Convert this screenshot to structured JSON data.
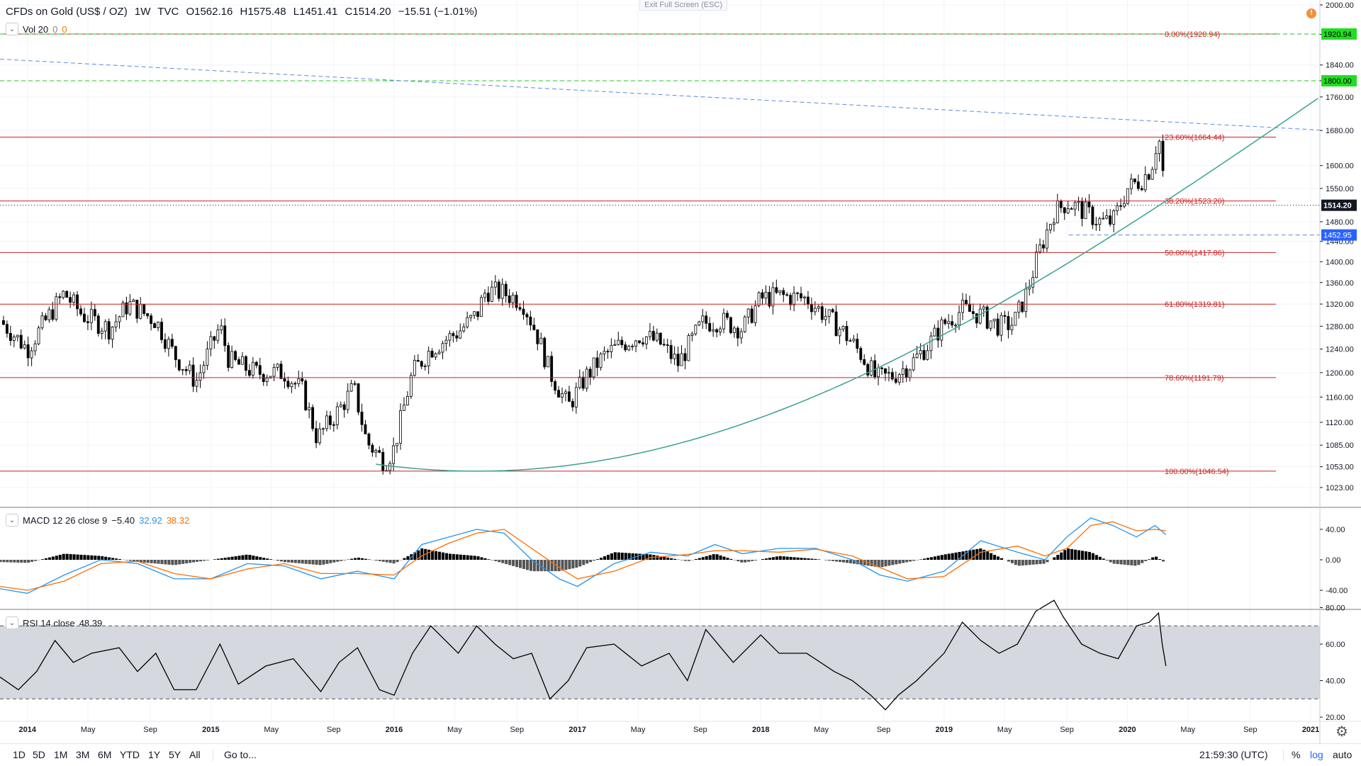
{
  "header": {
    "symbol": "CFDs on Gold (US$ / OZ)",
    "interval": "1W",
    "source": "TVC",
    "ohlc": {
      "o_label": "O",
      "o": "1562.16",
      "h_label": "H",
      "h": "1575.48",
      "l_label": "L",
      "l": "1451.41",
      "c_label": "C",
      "c": "1514.20",
      "change": "−15.51 (−1.01%)"
    },
    "exit_fullscreen": "Exit Full Screen (ESC)"
  },
  "indicators": {
    "vol": {
      "label": "Vol 20",
      "v1": "0",
      "v2": "0"
    },
    "macd": {
      "label": "MACD 12 26 close 9",
      "hist": "−5.40",
      "macd": "32.92",
      "signal": "38.32"
    },
    "rsi": {
      "label": "RSI 14 close",
      "value": "48.39"
    }
  },
  "bottom_bar": {
    "ranges": [
      "1D",
      "5D",
      "1M",
      "3M",
      "6M",
      "YTD",
      "1Y",
      "5Y",
      "All"
    ],
    "goto": "Go to...",
    "clock": "21:59:30 (UTC)",
    "pct": "%",
    "log": "log",
    "auto": "auto"
  },
  "colors": {
    "up": "#ffffff",
    "down": "#000000",
    "candle_border": "#000000",
    "fib": "#cc2222",
    "trend_dashed": "#5b8ddb",
    "green_dashed": "#22cc22",
    "curve": "#3aa38f",
    "macd": "#2196f3",
    "signal": "#ff6d00",
    "rsi_line": "#000000",
    "rsi_band": "#d1d4dc",
    "price_label_bg": "#131722",
    "support_label_bg": "#2962ff",
    "green_label_bg": "#22dd22"
  },
  "chart_data": [
    {
      "type": "candlestick",
      "title": "CFDs on Gold (US$ / OZ)",
      "y_scale": "log",
      "ylim": [
        1000,
        2000
      ],
      "y_ticks": [
        1023.0,
        1053.0,
        1085.0,
        1120.0,
        1160.0,
        1200.0,
        1240.0,
        1280.0,
        1320.0,
        1360.0,
        1400.0,
        1440.0,
        1480.0,
        1550.0,
        1600.0,
        1680.0,
        1760.0,
        1800.0,
        1840.0,
        1920.0,
        2000.0
      ],
      "x_ticks": [
        "2014",
        "May",
        "Sep",
        "2015",
        "May",
        "Sep",
        "2016",
        "May",
        "Sep",
        "2017",
        "May",
        "Sep",
        "2018",
        "May",
        "Sep",
        "2019",
        "May",
        "Sep",
        "2020",
        "May",
        "Sep",
        "2021"
      ],
      "x_tick_years": [
        2014.0,
        2014.33,
        2014.67,
        2015.0,
        2015.33,
        2015.67,
        2016.0,
        2016.33,
        2016.67,
        2017.0,
        2017.33,
        2017.67,
        2018.0,
        2018.33,
        2018.67,
        2019.0,
        2019.33,
        2019.67,
        2020.0,
        2020.33,
        2020.67,
        2021.0
      ],
      "x_range_years": [
        2013.85,
        2021.05
      ],
      "price_path": [
        [
          2013.85,
          1290
        ],
        [
          2014.0,
          1240
        ],
        [
          2014.1,
          1290
        ],
        [
          2014.2,
          1340
        ],
        [
          2014.3,
          1300
        ],
        [
          2014.45,
          1275
        ],
        [
          2014.55,
          1320
        ],
        [
          2014.7,
          1290
        ],
        [
          2014.8,
          1230
        ],
        [
          2014.92,
          1185
        ],
        [
          2015.05,
          1280
        ],
        [
          2015.1,
          1220
        ],
        [
          2015.25,
          1200
        ],
        [
          2015.4,
          1200
        ],
        [
          2015.5,
          1170
        ],
        [
          2015.58,
          1095
        ],
        [
          2015.7,
          1140
        ],
        [
          2015.78,
          1175
        ],
        [
          2015.85,
          1090
        ],
        [
          2015.95,
          1060
        ],
        [
          2016.0,
          1080
        ],
        [
          2016.1,
          1200
        ],
        [
          2016.2,
          1240
        ],
        [
          2016.35,
          1270
        ],
        [
          2016.45,
          1300
        ],
        [
          2016.5,
          1345
        ],
        [
          2016.6,
          1340
        ],
        [
          2016.7,
          1325
        ],
        [
          2016.78,
          1265
        ],
        [
          2016.85,
          1200
        ],
        [
          2016.95,
          1145
        ],
        [
          2017.05,
          1195
        ],
        [
          2017.15,
          1230
        ],
        [
          2017.25,
          1250
        ],
        [
          2017.35,
          1265
        ],
        [
          2017.45,
          1250
        ],
        [
          2017.55,
          1215
        ],
        [
          2017.68,
          1285
        ],
        [
          2017.78,
          1290
        ],
        [
          2017.9,
          1275
        ],
        [
          2018.0,
          1330
        ],
        [
          2018.1,
          1335
        ],
        [
          2018.25,
          1330
        ],
        [
          2018.35,
          1300
        ],
        [
          2018.45,
          1270
        ],
        [
          2018.55,
          1230
        ],
        [
          2018.63,
          1190
        ],
        [
          2018.72,
          1195
        ],
        [
          2018.82,
          1215
        ],
        [
          2018.92,
          1250
        ],
        [
          2019.0,
          1285
        ],
        [
          2019.1,
          1310
        ],
        [
          2019.2,
          1300
        ],
        [
          2019.3,
          1280
        ],
        [
          2019.38,
          1285
        ],
        [
          2019.45,
          1340
        ],
        [
          2019.52,
          1420
        ],
        [
          2019.6,
          1500
        ],
        [
          2019.67,
          1520
        ],
        [
          2019.75,
          1505
        ],
        [
          2019.85,
          1480
        ],
        [
          2019.92,
          1480
        ],
        [
          2020.0,
          1550
        ],
        [
          2020.08,
          1570
        ],
        [
          2020.13,
          1595
        ],
        [
          2020.17,
          1670
        ],
        [
          2020.19,
          1600
        ],
        [
          2020.21,
          1514
        ]
      ],
      "fib_levels": [
        {
          "label": "0.00%(1920.94)",
          "value": 1920.94
        },
        {
          "label": "23.60%(1664.44)",
          "value": 1664.44
        },
        {
          "label": "38.20%(1523.20)",
          "value": 1523.2
        },
        {
          "label": "50.00%(1417.86)",
          "value": 1417.86
        },
        {
          "label": "61.80%(1319.81)",
          "value": 1319.81
        },
        {
          "label": "78.60%(1191.79)",
          "value": 1191.79
        },
        {
          "label": "100.00%(1046.54)",
          "value": 1046.54
        }
      ],
      "horizontal_lines": [
        {
          "value": 1920.94,
          "style": "green-dashed",
          "label": "1920.94"
        },
        {
          "value": 1800.0,
          "style": "green-dashed",
          "label": "1800.00"
        },
        {
          "value": 1452.95,
          "style": "blue-dashed",
          "label": "1452.95",
          "from_year": 2019.68
        }
      ],
      "current_price": {
        "value": 1514.2,
        "label": "1514.20"
      },
      "trendline": {
        "from": [
          2013.85,
          1855
        ],
        "to": [
          2021.05,
          1681
        ]
      },
      "parabolic_curve": {
        "vertex_year": 2016.45,
        "vertex_price": 1046.54,
        "points_through": [
          [
            2018.63,
            1160
          ],
          [
            2020.21,
            1452.95
          ],
          [
            2021.05,
            1760
          ]
        ]
      }
    },
    {
      "type": "line",
      "title": "MACD 12 26 close 9",
      "ylim": [
        -50,
        60
      ],
      "y_ticks": [
        40.0,
        0.0,
        -40.0
      ],
      "series": [
        {
          "name": "MACD",
          "x": [
            2013.85,
            2014.0,
            2014.2,
            2014.4,
            2014.6,
            2014.8,
            2015.0,
            2015.2,
            2015.4,
            2015.6,
            2015.8,
            2016.0,
            2016.15,
            2016.3,
            2016.45,
            2016.6,
            2016.75,
            2016.9,
            2017.0,
            2017.2,
            2017.4,
            2017.6,
            2017.75,
            2017.9,
            2018.1,
            2018.3,
            2018.5,
            2018.65,
            2018.8,
            2019.0,
            2019.2,
            2019.4,
            2019.55,
            2019.67,
            2019.8,
            2019.92,
            2020.05,
            2020.15,
            2020.21
          ],
          "y": [
            -38,
            -44,
            -20,
            0,
            -5,
            -25,
            -25,
            -5,
            -8,
            -25,
            -15,
            -25,
            20,
            30,
            40,
            35,
            0,
            -25,
            -35,
            -5,
            10,
            5,
            20,
            8,
            15,
            15,
            0,
            -20,
            -28,
            -15,
            25,
            10,
            0,
            30,
            55,
            45,
            30,
            45,
            33
          ]
        },
        {
          "name": "Signal",
          "x": [
            2013.85,
            2014.0,
            2014.2,
            2014.4,
            2014.6,
            2014.8,
            2015.0,
            2015.2,
            2015.4,
            2015.6,
            2015.8,
            2016.0,
            2016.15,
            2016.3,
            2016.45,
            2016.6,
            2016.75,
            2016.9,
            2017.0,
            2017.2,
            2017.4,
            2017.6,
            2017.75,
            2017.9,
            2018.1,
            2018.3,
            2018.5,
            2018.65,
            2018.8,
            2019.0,
            2019.2,
            2019.4,
            2019.55,
            2019.67,
            2019.8,
            2019.92,
            2020.05,
            2020.15,
            2020.21
          ],
          "y": [
            -35,
            -40,
            -28,
            -5,
            -2,
            -18,
            -25,
            -12,
            -5,
            -18,
            -18,
            -20,
            5,
            22,
            35,
            40,
            15,
            -10,
            -25,
            -15,
            3,
            7,
            12,
            12,
            10,
            14,
            5,
            -10,
            -25,
            -22,
            10,
            18,
            5,
            15,
            45,
            50,
            38,
            40,
            38
          ]
        }
      ]
    },
    {
      "type": "line",
      "title": "RSI 14 close",
      "ylim": [
        20,
        90
      ],
      "y_ticks": [
        80.0,
        60.0,
        40.0,
        20.0
      ],
      "band": [
        30,
        70
      ],
      "series": [
        {
          "name": "RSI",
          "x": [
            2013.85,
            2013.95,
            2014.05,
            2014.15,
            2014.25,
            2014.35,
            2014.5,
            2014.6,
            2014.7,
            2014.8,
            2014.92,
            2015.05,
            2015.15,
            2015.3,
            2015.45,
            2015.6,
            2015.7,
            2015.8,
            2015.92,
            2016.0,
            2016.1,
            2016.2,
            2016.35,
            2016.45,
            2016.55,
            2016.65,
            2016.75,
            2016.85,
            2016.95,
            2017.05,
            2017.2,
            2017.35,
            2017.5,
            2017.6,
            2017.7,
            2017.85,
            2018.0,
            2018.1,
            2018.25,
            2018.4,
            2018.5,
            2018.6,
            2018.68,
            2018.75,
            2018.85,
            2019.0,
            2019.1,
            2019.2,
            2019.3,
            2019.4,
            2019.5,
            2019.6,
            2019.65,
            2019.75,
            2019.85,
            2019.95,
            2020.05,
            2020.12,
            2020.17,
            2020.19,
            2020.21
          ],
          "y": [
            42,
            35,
            45,
            62,
            50,
            55,
            58,
            45,
            55,
            35,
            35,
            60,
            38,
            48,
            52,
            34,
            50,
            58,
            35,
            32,
            55,
            70,
            55,
            70,
            60,
            52,
            55,
            30,
            40,
            58,
            60,
            48,
            55,
            40,
            68,
            50,
            65,
            55,
            55,
            45,
            40,
            32,
            24,
            32,
            40,
            55,
            72,
            62,
            55,
            60,
            78,
            84,
            75,
            60,
            55,
            52,
            70,
            72,
            77,
            60,
            48
          ]
        }
      ]
    }
  ]
}
